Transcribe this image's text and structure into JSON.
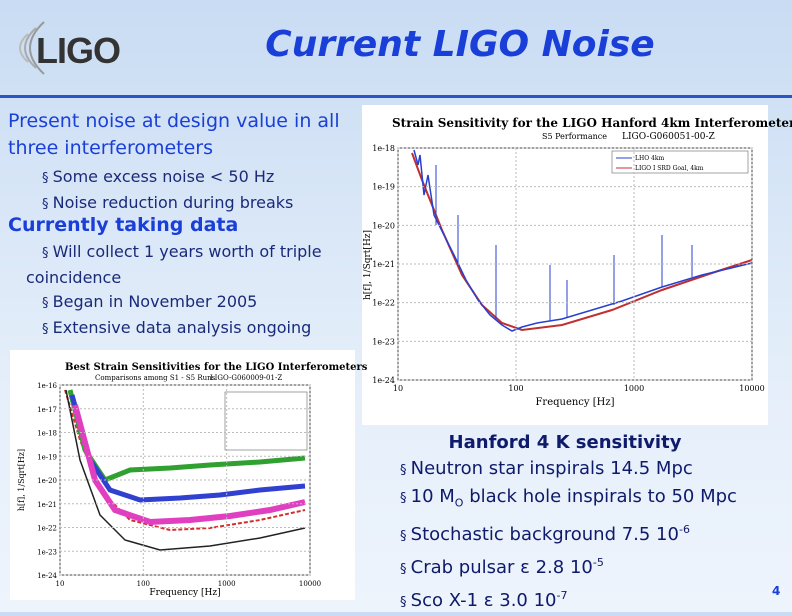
{
  "header": {
    "logo": "LIGO",
    "title": "Current LIGO Noise"
  },
  "left": {
    "heading1": "Present noise at design value in all three interferometers",
    "bullets1": [
      "Some excess noise < 50 Hz",
      "Noise reduction during breaks"
    ],
    "heading2": "Currently taking data",
    "bullets2": [
      "Will collect 1 years worth of triple coincidence",
      "Began in November 2005",
      "Extensive data analysis ongoing"
    ]
  },
  "figure1": {
    "title": "Strain Sensitivity for the LIGO Hanford 4km Interferometer",
    "subtitle": "S5 Performance",
    "doc_id": "LIGO-G060051-00-Z",
    "legend": [
      "LHO 4km",
      "LIGO I SRD Goal, 4km"
    ],
    "xlabel": "Frequency [Hz]",
    "ylabel": "h[f], 1/Sqrt[Hz]",
    "xticks": [
      "10",
      "100",
      "1000",
      "10000"
    ],
    "yticks": [
      "1e-18",
      "1e-19",
      "1e-20",
      "1e-21",
      "1e-22",
      "1e-23",
      "1e-24"
    ]
  },
  "figure2": {
    "title": "Best Strain Sensitivities for the LIGO Interferometers",
    "subtitle": "Comparisons among S1 - S5 Runs",
    "doc_id": "LIGO-G060009-01-Z",
    "xlabel": "Frequency [Hz]",
    "ylabel": "h[f], 1/Sqrt[Hz]",
    "xticks": [
      "10",
      "100",
      "1000",
      "10000"
    ],
    "yticks": [
      "1e-16",
      "1e-17",
      "1e-18",
      "1e-19",
      "1e-20",
      "1e-21",
      "1e-22",
      "1e-23",
      "1e-24"
    ]
  },
  "sensitivity": {
    "heading": "Hanford 4 K sensitivity",
    "items": [
      {
        "text": "Neutron star inspirals 14.5 Mpc"
      },
      {
        "text": "10 M",
        "sub": "O",
        "rest": " black hole inspirals to 50 Mpc"
      },
      {
        "text": "Stochastic background 7.5 10",
        "sup": "-6"
      },
      {
        "text": "Crab pulsar ε 2.8 10",
        "sup": "-5"
      },
      {
        "text": "Sco X-1 ε 3.0 10",
        "sup": "-7"
      }
    ]
  },
  "page_number": "4"
}
